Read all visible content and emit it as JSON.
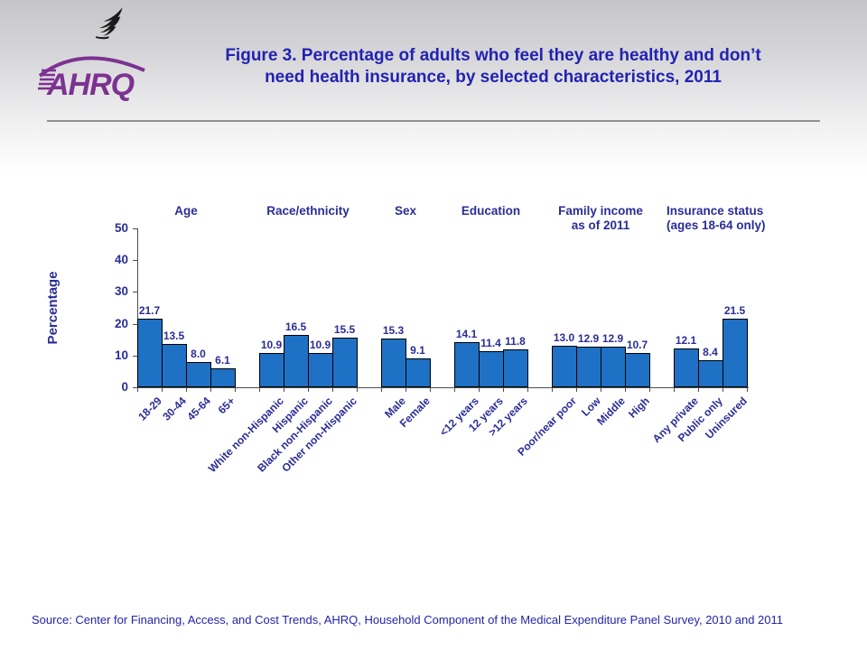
{
  "logo": {
    "text": "AHRQ"
  },
  "header": {
    "title_line1": "Figure 3. Percentage of adults who feel they are healthy and don’t",
    "title_line2": "need health insurance, by selected characteristics, 2011"
  },
  "footer": {
    "source": "Source: Center for Financing, Access, and Cost Trends, AHRQ, Household Component of the Medical Expenditure Panel Survey, 2010 and 2011"
  },
  "chart_data": {
    "type": "bar",
    "title": "Percentage of adults who feel they are healthy and don’t need health insurance, by selected characteristics, 2011",
    "ylabel": "Percentage",
    "ylim": [
      0,
      50
    ],
    "yticks": [
      0,
      10,
      20,
      30,
      40,
      50
    ],
    "grid": false,
    "legend": "none",
    "bar_color": "#1e71c4",
    "groups": [
      {
        "header_lines": [
          "Age"
        ],
        "categories": [
          "18-29",
          "30-44",
          "45-64",
          "65+"
        ],
        "values": [
          21.7,
          13.5,
          8.0,
          6.1
        ]
      },
      {
        "header_lines": [
          "Race/ethnicity"
        ],
        "categories": [
          "White non-Hispanic",
          "Hispanic",
          "Black non-Hispanic",
          "Other non-Hispanic"
        ],
        "values": [
          10.9,
          16.5,
          10.9,
          15.5
        ]
      },
      {
        "header_lines": [
          "Sex"
        ],
        "categories": [
          "Male",
          "Female"
        ],
        "values": [
          15.3,
          9.1
        ]
      },
      {
        "header_lines": [
          "Education"
        ],
        "categories": [
          "<12 years",
          "12 years",
          ">12 years"
        ],
        "values": [
          14.1,
          11.4,
          11.8
        ]
      },
      {
        "header_lines": [
          "Family income",
          "as of 2011"
        ],
        "categories": [
          "Poor/near poor",
          "Low",
          "Middle",
          "High"
        ],
        "values": [
          13.0,
          12.9,
          12.9,
          10.7
        ]
      },
      {
        "header_lines": [
          "Insurance status",
          "(ages 18-64 only)"
        ],
        "header_align": "left",
        "categories": [
          "Any private",
          "Public only",
          "Uninsured"
        ],
        "values": [
          12.1,
          8.4,
          21.5
        ]
      }
    ]
  }
}
